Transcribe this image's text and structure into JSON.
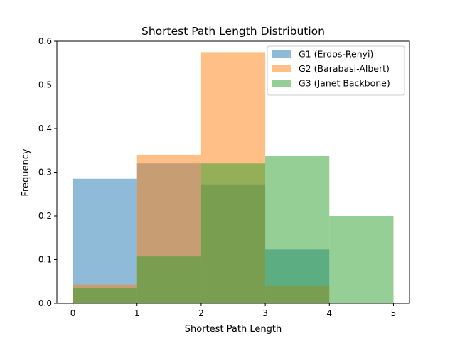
{
  "chart_data": {
    "type": "bar",
    "title": "Shortest Path Length Distribution",
    "xlabel": "Shortest Path Length",
    "ylabel": "Frequency",
    "xlim": [
      -0.25,
      5.25
    ],
    "ylim": [
      0,
      0.6
    ],
    "xticks": [
      "0",
      "1",
      "2",
      "3",
      "4",
      "5"
    ],
    "yticks": [
      "0.0",
      "0.1",
      "0.2",
      "0.3",
      "0.4",
      "0.5",
      "0.6"
    ],
    "bin_edges": [
      0,
      1,
      2,
      3,
      4,
      5
    ],
    "grid": false,
    "legend_position": "upper right",
    "bar_alpha": 0.5,
    "series": [
      {
        "name": "G1 (Erdos-Renyi)",
        "color": "#1f77b4",
        "values": [
          0.285,
          0.32,
          0.272,
          0.123,
          0.0
        ]
      },
      {
        "name": "G2 (Barabasi-Albert)",
        "color": "#ff7f0e",
        "values": [
          0.043,
          0.34,
          0.575,
          0.04,
          0.0
        ]
      },
      {
        "name": "G3 (Janet Backbone)",
        "color": "#2ca02c",
        "values": [
          0.035,
          0.107,
          0.32,
          0.338,
          0.2
        ]
      }
    ]
  }
}
